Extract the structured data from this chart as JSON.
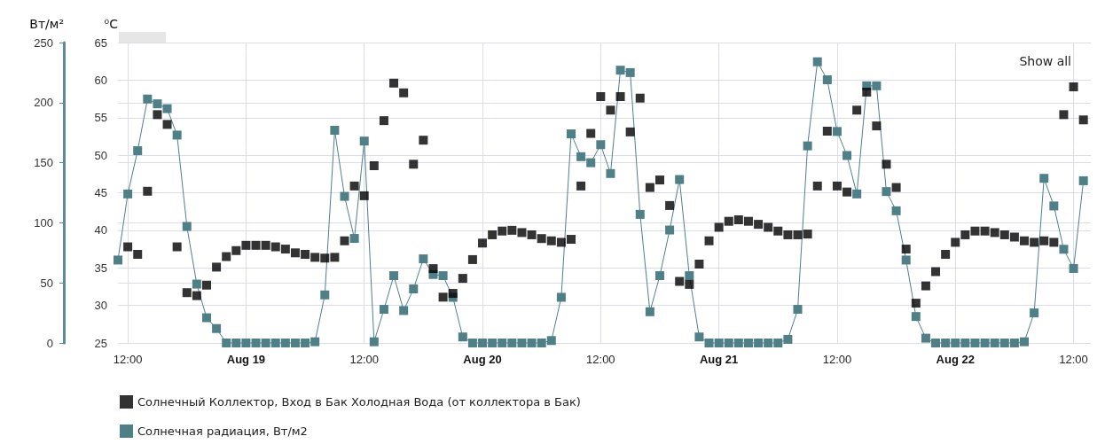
{
  "chart_data": {
    "type": "line",
    "ylabel": "Вт/м²",
    "y2label": "⁰C",
    "annotations": [
      "Show all"
    ],
    "xlim": [
      "--08-18T11:00",
      "--08-22T13:45"
    ],
    "xticks": [
      {
        "value": "--08-18T12:00",
        "label": "12:00"
      },
      {
        "value": "--08-19",
        "label": "Aug 19"
      },
      {
        "value": "--08-19T12:00",
        "label": "12:00"
      },
      {
        "value": "--08-20",
        "label": "Aug 20"
      },
      {
        "value": "--08-20T12:00",
        "label": "12:00"
      },
      {
        "value": "--08-21",
        "label": "Aug 21"
      },
      {
        "value": "--08-21T12:00",
        "label": "12:00"
      },
      {
        "value": "--08-22",
        "label": "Aug 22"
      },
      {
        "value": "--08-22T12:00",
        "label": "12:00"
      }
    ],
    "x": [
      "--08-18T11:00",
      "--08-18T12:00",
      "--08-18T13:00",
      "--08-18T14:00",
      "--08-18T15:00",
      "--08-18T16:00",
      "--08-18T17:00",
      "--08-18T18:00",
      "--08-18T19:00",
      "--08-18T20:00",
      "--08-18T21:00",
      "--08-18T22:00",
      "--08-18T23:00",
      "--08-19T00:00",
      "--08-19T01:00",
      "--08-19T02:00",
      "--08-19T03:00",
      "--08-19T04:00",
      "--08-19T05:00",
      "--08-19T06:00",
      "--08-19T07:00",
      "--08-19T08:00",
      "--08-19T09:00",
      "--08-19T10:00",
      "--08-19T11:00",
      "--08-19T12:00",
      "--08-19T13:00",
      "--08-19T14:00",
      "--08-19T15:00",
      "--08-19T16:00",
      "--08-19T17:00",
      "--08-19T18:00",
      "--08-19T19:00",
      "--08-19T20:00",
      "--08-19T21:00",
      "--08-19T22:00",
      "--08-19T23:00",
      "--08-20T00:00",
      "--08-20T01:00",
      "--08-20T02:00",
      "--08-20T03:00",
      "--08-20T04:00",
      "--08-20T05:00",
      "--08-20T06:00",
      "--08-20T07:00",
      "--08-20T08:00",
      "--08-20T09:00",
      "--08-20T10:00",
      "--08-20T11:00",
      "--08-20T12:00",
      "--08-20T13:00",
      "--08-20T14:00",
      "--08-20T15:00",
      "--08-20T16:00",
      "--08-20T17:00",
      "--08-20T18:00",
      "--08-20T19:00",
      "--08-20T20:00",
      "--08-20T21:00",
      "--08-20T22:00",
      "--08-20T23:00",
      "--08-21T00:00",
      "--08-21T01:00",
      "--08-21T02:00",
      "--08-21T03:00",
      "--08-21T04:00",
      "--08-21T05:00",
      "--08-21T06:00",
      "--08-21T07:00",
      "--08-21T08:00",
      "--08-21T09:00",
      "--08-21T10:00",
      "--08-21T11:00",
      "--08-21T12:00",
      "--08-21T13:00",
      "--08-21T14:00",
      "--08-21T15:00",
      "--08-21T16:00",
      "--08-21T17:00",
      "--08-21T18:00",
      "--08-21T19:00",
      "--08-21T20:00",
      "--08-21T21:00",
      "--08-21T22:00",
      "--08-21T23:00",
      "--08-22T00:00",
      "--08-22T01:00",
      "--08-22T02:00",
      "--08-22T03:00",
      "--08-22T04:00",
      "--08-22T05:00",
      "--08-22T06:00",
      "--08-22T07:00",
      "--08-22T08:00",
      "--08-22T09:00",
      "--08-22T10:00",
      "--08-22T11:00",
      "--08-22T12:00",
      "--08-22T13:00"
    ],
    "ylim": [
      0,
      250
    ],
    "yticks": [
      0,
      50,
      100,
      150,
      200,
      250
    ],
    "y2lim": [
      25,
      65
    ],
    "y2ticks": [
      25,
      30,
      35,
      40,
      45,
      50,
      55,
      60,
      65
    ],
    "grid": true,
    "legend": "bottom left",
    "marker": "square",
    "line_style": "solid",
    "series": [
      {
        "name": "Солнечный Коллектор, Вход в Бак Холодная Вода (от коллектора в Бак)",
        "type": "scatter",
        "axis": "y2",
        "color": "#000000",
        "values": [
          null,
          37.8,
          36.8,
          45.2,
          55.4,
          54.1,
          37.8,
          31.7,
          31.3,
          32.7,
          35.1,
          36.5,
          37.3,
          38.0,
          38.0,
          38.0,
          37.8,
          37.5,
          37.0,
          36.8,
          36.4,
          36.3,
          36.4,
          38.6,
          45.9,
          44.6,
          48.6,
          54.6,
          59.6,
          58.3,
          48.8,
          52.0,
          34.9,
          31.1,
          31.6,
          33.6,
          36.1,
          38.3,
          39.4,
          39.9,
          40.0,
          39.7,
          39.4,
          38.9,
          38.6,
          38.4,
          38.8,
          45.9,
          52.9,
          57.8,
          56.0,
          57.8,
          53.1,
          57.6,
          45.7,
          46.7,
          43.3,
          33.2,
          32.8,
          35.5,
          38.6,
          40.4,
          41.2,
          41.4,
          41.2,
          40.8,
          40.4,
          39.9,
          39.4,
          39.4,
          39.5,
          45.9,
          53.2,
          45.9,
          45.1,
          56.0,
          58.4,
          53.9,
          48.8,
          45.7,
          37.5,
          30.3,
          32.6,
          34.5,
          36.8,
          38.4,
          39.4,
          39.9,
          39.9,
          39.7,
          39.4,
          39.1,
          38.6,
          38.4,
          38.6,
          38.4,
          55.4,
          59.1,
          54.7
        ]
      },
      {
        "name": "Солнечная радиация, Вт/м2",
        "color": "#4f7f87",
        "values": [
          69,
          124,
          160,
          203,
          199,
          195,
          173,
          97,
          49,
          21,
          12,
          0,
          0,
          0,
          0,
          0,
          0,
          0,
          0,
          0,
          1,
          40,
          177,
          122,
          87,
          168,
          1,
          28,
          56,
          27,
          45,
          70,
          57,
          56,
          38,
          5,
          0,
          0,
          0,
          0,
          0,
          0,
          0,
          0,
          2,
          38,
          174,
          155,
          150,
          165,
          141,
          227,
          225,
          107,
          26,
          56,
          94,
          136,
          56,
          5,
          0,
          0,
          0,
          0,
          0,
          0,
          0,
          0,
          3,
          28,
          164,
          234,
          219,
          176,
          156,
          124,
          214,
          214,
          126,
          110,
          69,
          22,
          4,
          0,
          0,
          0,
          0,
          0,
          0,
          0,
          0,
          0,
          1,
          25,
          137,
          114,
          78,
          62,
          135
        ]
      }
    ]
  }
}
